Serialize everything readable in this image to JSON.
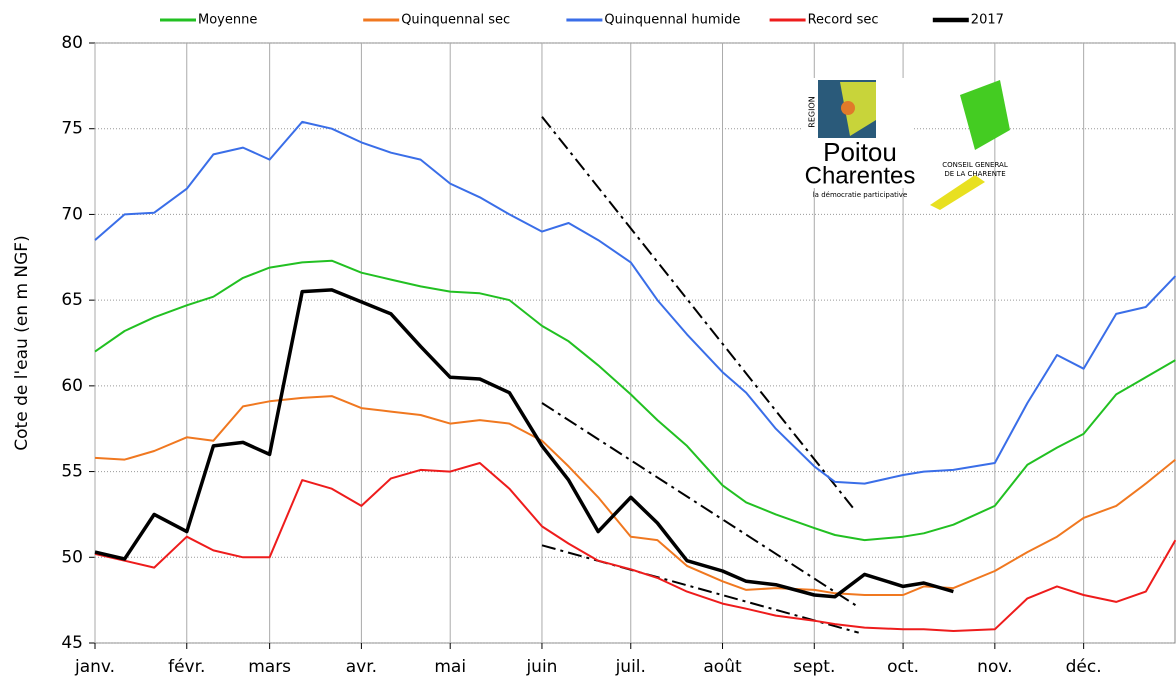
{
  "chart_data": {
    "type": "line",
    "ylabel": "Cote de l'eau (en m NGF)",
    "xlim": [
      0,
      365
    ],
    "xticks": [
      {
        "value": 0,
        "label": "janv."
      },
      {
        "value": 31,
        "label": "févr."
      },
      {
        "value": 59,
        "label": "mars"
      },
      {
        "value": 90,
        "label": "avr."
      },
      {
        "value": 120,
        "label": "mai"
      },
      {
        "value": 151,
        "label": "juin"
      },
      {
        "value": 181,
        "label": "juil."
      },
      {
        "value": 212,
        "label": "août"
      },
      {
        "value": 243,
        "label": "sept."
      },
      {
        "value": 273,
        "label": "oct."
      },
      {
        "value": 304,
        "label": "nov."
      },
      {
        "value": 334,
        "label": "déc."
      }
    ],
    "ylim": [
      45,
      80
    ],
    "yticks": [
      45,
      50,
      55,
      60,
      65,
      70,
      75,
      80
    ],
    "grid": true,
    "legend": "top",
    "x": [
      0,
      10,
      20,
      31,
      40,
      50,
      59,
      70,
      80,
      90,
      100,
      110,
      120,
      130,
      140,
      151,
      160,
      170,
      181,
      190,
      200,
      212,
      220,
      230,
      243,
      250,
      260,
      273,
      280,
      290,
      304,
      315,
      325,
      334,
      345,
      355,
      365
    ],
    "series": [
      {
        "name": "Moyenne",
        "color": "#22c022",
        "width": 2,
        "values": [
          62,
          63.2,
          64,
          64.7,
          65.2,
          66.3,
          66.9,
          67.2,
          67.3,
          66.6,
          66.2,
          65.8,
          65.5,
          65.4,
          65,
          63.5,
          62.6,
          61.2,
          59.5,
          58,
          56.5,
          54.2,
          53.2,
          52.5,
          51.7,
          51.3,
          51,
          51.2,
          51.4,
          51.9,
          53,
          55.4,
          56.4,
          57.2,
          59.5,
          60.5,
          61.5
        ]
      },
      {
        "name": "Quinquennal sec",
        "color": "#f07820",
        "width": 2,
        "values": [
          55.8,
          55.7,
          56.2,
          57,
          56.8,
          58.8,
          59.1,
          59.3,
          59.4,
          58.7,
          58.5,
          58.3,
          57.8,
          58,
          57.8,
          56.8,
          55.3,
          53.5,
          51.2,
          51,
          49.5,
          48.6,
          48.1,
          48.2,
          48.1,
          47.9,
          47.8,
          47.8,
          48.3,
          48.2,
          49.2,
          50.3,
          51.2,
          52.3,
          53,
          54.3,
          55.7
        ]
      },
      {
        "name": "Quinquennal humide",
        "color": "#3a6ee8",
        "width": 2,
        "values": [
          68.5,
          70,
          70.1,
          71.5,
          73.5,
          73.9,
          73.2,
          75.4,
          75,
          74.2,
          73.6,
          73.2,
          71.8,
          71,
          70,
          69,
          69.5,
          68.5,
          67.2,
          65,
          63,
          60.8,
          59.6,
          57.5,
          55.3,
          54.4,
          54.3,
          54.8,
          55,
          55.1,
          55.5,
          59,
          61.8,
          61,
          64.2,
          64.6,
          66.4
        ]
      },
      {
        "name": "Record sec",
        "color": "#ee1c1c",
        "width": 2,
        "values": [
          50.2,
          49.8,
          49.4,
          51.2,
          50.4,
          50,
          50,
          54.5,
          54,
          53,
          54.6,
          55.1,
          55,
          55.5,
          54,
          51.8,
          50.8,
          49.8,
          49.3,
          48.8,
          48,
          47.3,
          47,
          46.6,
          46.3,
          46.1,
          45.9,
          45.8,
          45.8,
          45.7,
          45.8,
          47.6,
          48.3,
          47.8,
          47.4,
          48,
          51
        ]
      },
      {
        "name": "2017",
        "color": "#000000",
        "width": 3.5,
        "values": [
          50.3,
          49.9,
          52.5,
          51.5,
          56.5,
          56.7,
          56,
          65.5,
          65.6,
          64.9,
          64.2,
          62.3,
          60.5,
          60.4,
          59.6,
          56.5,
          54.5,
          51.5,
          53.5,
          52,
          49.8,
          49.2,
          48.6,
          48.4,
          47.8,
          47.7,
          49,
          48.3,
          48.5,
          48,
          null,
          null,
          null,
          null,
          null,
          null,
          null
        ]
      }
    ],
    "trend_lines": [
      {
        "x": [
          151,
          256
        ],
        "values": [
          75.7,
          52.9
        ]
      },
      {
        "x": [
          151,
          257
        ],
        "values": [
          59,
          47.2
        ]
      },
      {
        "x": [
          151,
          258
        ],
        "values": [
          50.7,
          45.6
        ]
      }
    ],
    "logos": {
      "region": [
        "REGION",
        "Poitou",
        "Charentes",
        "la démocratie participative"
      ],
      "conseil": [
        "CONSEIL GENERAL",
        "DE LA CHARENTE"
      ]
    }
  }
}
